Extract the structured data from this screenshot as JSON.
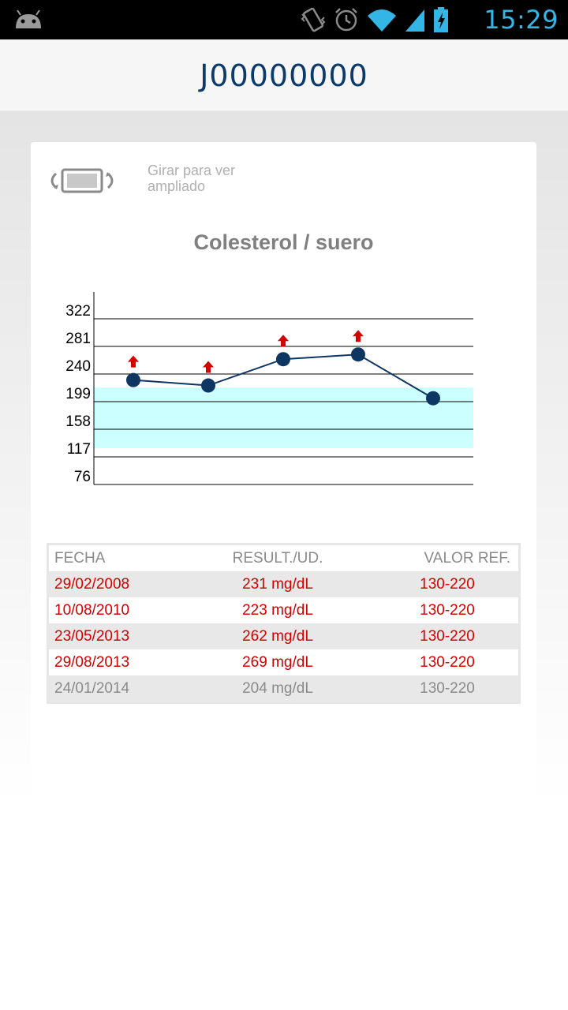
{
  "status_bar": {
    "time": "15:29",
    "icons": [
      "android-icon",
      "vibrate-icon",
      "alarm-icon",
      "wifi-icon",
      "signal-icon",
      "battery-charging-icon"
    ]
  },
  "header": {
    "title": "J00000000"
  },
  "rotate_hint": {
    "text": "Girar para ver ampliado",
    "icon": "rotate-phone-icon"
  },
  "chart_data": {
    "type": "line",
    "title": "Colesterol / suero",
    "ylim": [
      76,
      322
    ],
    "yticks": [
      322,
      281,
      240,
      199,
      158,
      117,
      76
    ],
    "reference_range": [
      130,
      220
    ],
    "x": [
      "29/02/2008",
      "10/08/2010",
      "23/05/2013",
      "29/08/2013",
      "24/01/2014"
    ],
    "values": [
      231,
      223,
      262,
      269,
      204
    ],
    "high_flags": [
      true,
      true,
      true,
      true,
      false
    ],
    "colors": {
      "line": "#0e3663",
      "range_band": "#ccffff",
      "flag": "#d40000"
    }
  },
  "table": {
    "headers": [
      "FECHA",
      "RESULT./UD.",
      "VALOR REF."
    ],
    "rows": [
      {
        "date": "29/02/2008",
        "result": "231 mg/dL",
        "ref": "130-220",
        "high": true
      },
      {
        "date": "10/08/2010",
        "result": "223 mg/dL",
        "ref": "130-220",
        "high": true
      },
      {
        "date": "23/05/2013",
        "result": "262 mg/dL",
        "ref": "130-220",
        "high": true
      },
      {
        "date": "29/08/2013",
        "result": "269 mg/dL",
        "ref": "130-220",
        "high": true
      },
      {
        "date": "24/01/2014",
        "result": "204 mg/dL",
        "ref": "130-220",
        "high": false
      }
    ]
  }
}
